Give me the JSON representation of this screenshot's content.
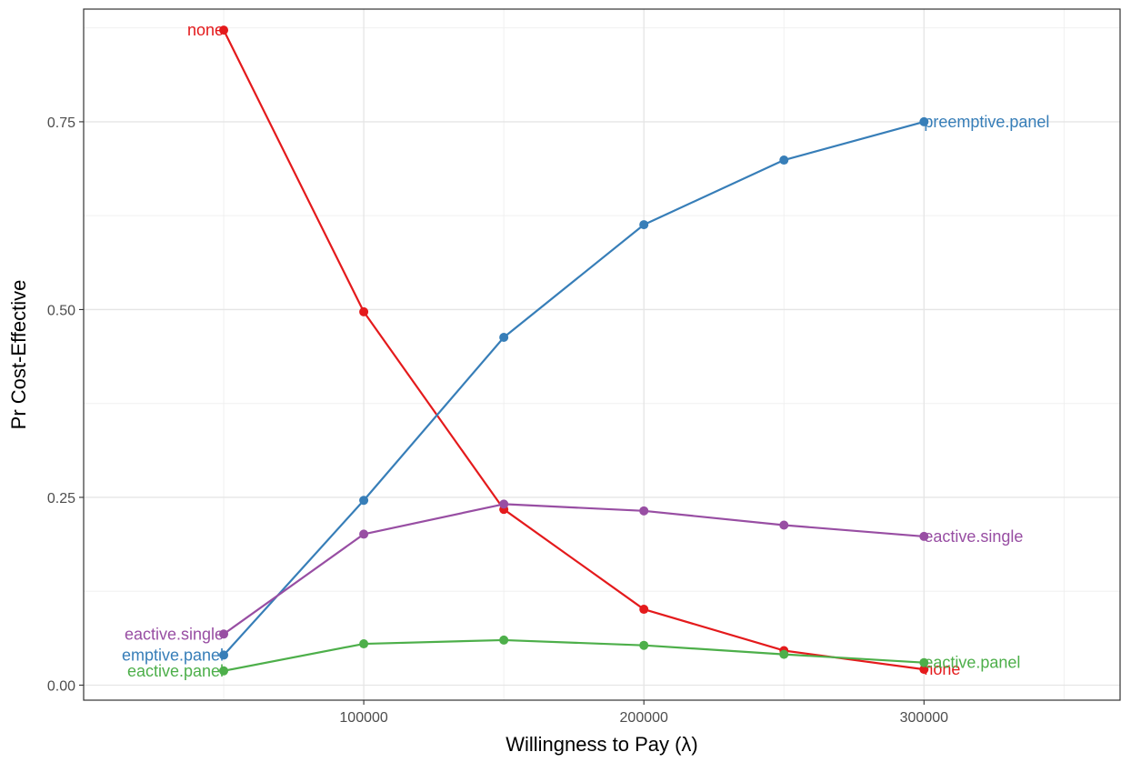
{
  "chart_data": {
    "type": "line",
    "xlabel": "Willingness to Pay (λ)",
    "ylabel": "Pr Cost-Effective",
    "xlim": [
      0,
      370000
    ],
    "ylim": [
      -0.02,
      0.9
    ],
    "x_ticks": [
      100000,
      200000,
      300000
    ],
    "x_tick_labels": [
      "100000",
      "200000",
      "300000"
    ],
    "y_ticks": [
      0.0,
      0.25,
      0.5,
      0.75
    ],
    "y_tick_labels": [
      "0.00",
      "0.25",
      "0.50",
      "0.75"
    ],
    "grid": true,
    "legend": "none (direct labels)",
    "x": [
      50000,
      100000,
      150000,
      200000,
      250000,
      300000
    ],
    "series": [
      {
        "name": "none",
        "color": "#e41a1c",
        "values": [
          0.872,
          0.497,
          0.234,
          0.101,
          0.046,
          0.021
        ],
        "start_label": "none",
        "end_label": "none"
      },
      {
        "name": "preemptive.panel",
        "color": "#377eb8",
        "values": [
          0.04,
          0.246,
          0.463,
          0.613,
          0.699,
          0.75
        ],
        "start_label": "emptive.panel",
        "end_label": "preemptive.panel"
      },
      {
        "name": "reactive.single",
        "color": "#984ea3",
        "values": [
          0.068,
          0.201,
          0.241,
          0.232,
          0.213,
          0.198
        ],
        "start_label": "eactive.single",
        "end_label": "eactive.single"
      },
      {
        "name": "reactive.panel",
        "color": "#4daf4a",
        "values": [
          0.019,
          0.055,
          0.06,
          0.053,
          0.041,
          0.03
        ],
        "start_label": "eactive.panel",
        "end_label": "eactive.panel"
      }
    ]
  }
}
